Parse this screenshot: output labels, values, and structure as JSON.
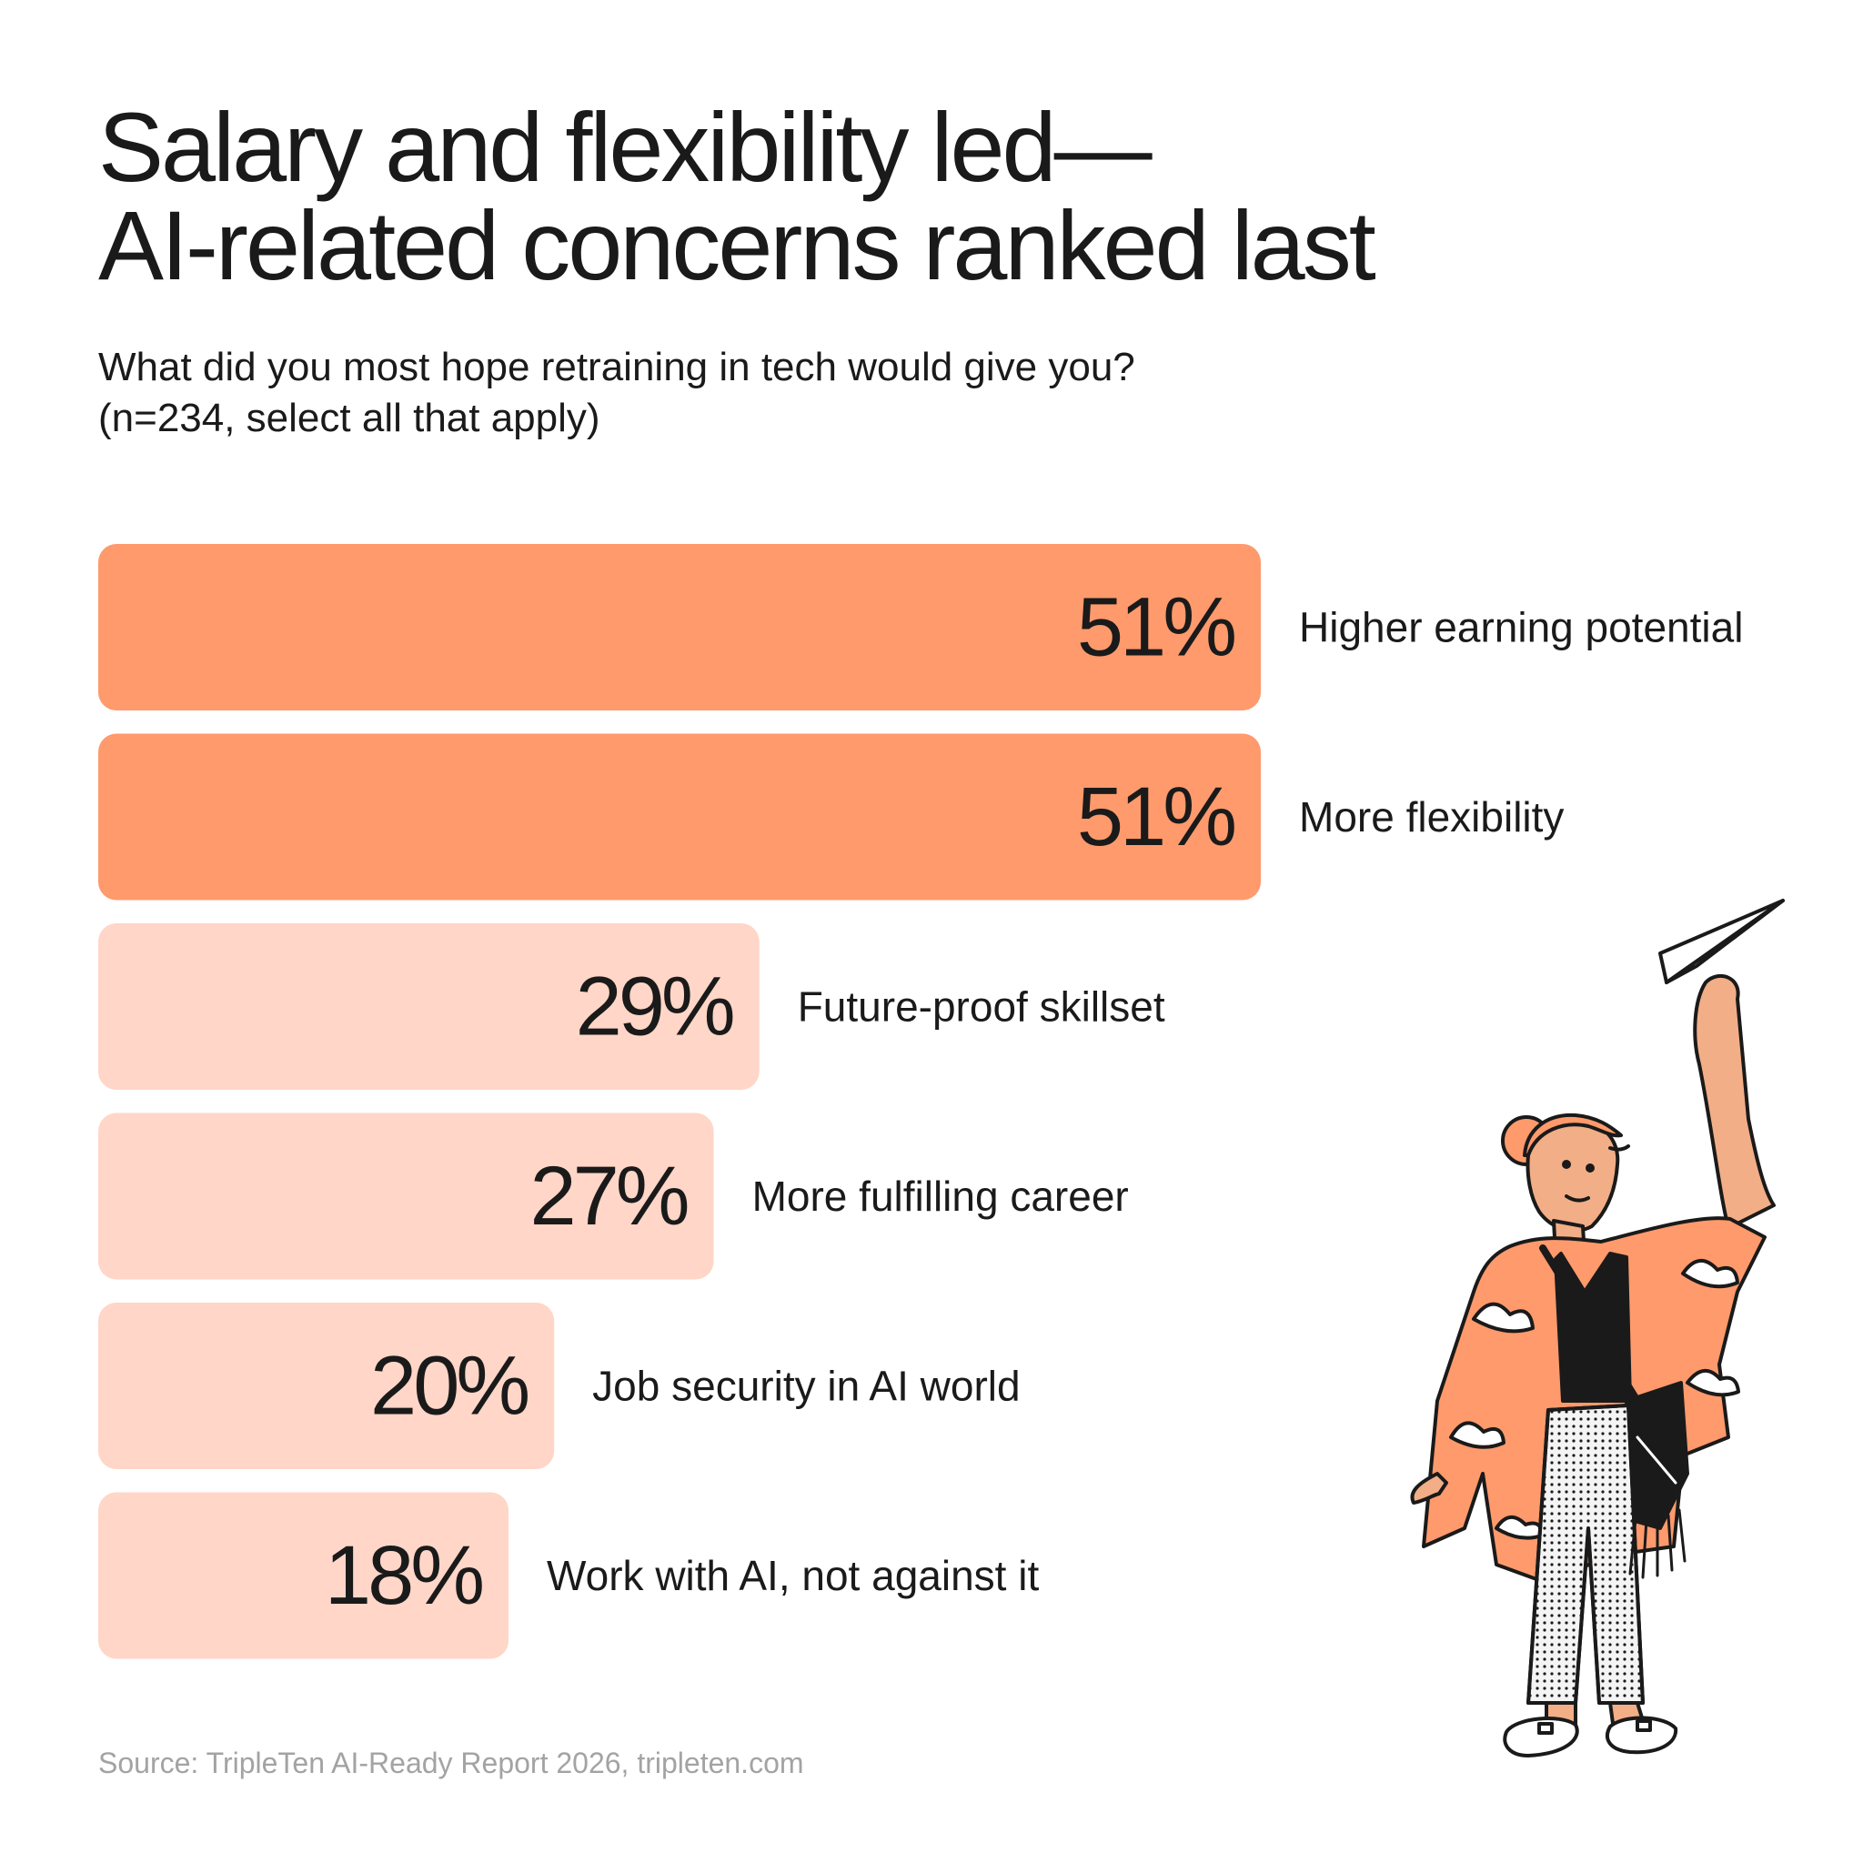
{
  "title_lines": [
    "Salary and flexibility led—",
    "AI-related concerns ranked last"
  ],
  "subtitle_lines": [
    "What did you most hope retraining in tech would give you?",
    "(n=234, select all that apply)"
  ],
  "source": "Source: TripleTen AI-Ready Report 2026, tripleten.com",
  "colors": {
    "highlight": "#FF9A6C",
    "muted": "#FFD6C7",
    "text": "#1a1a1a",
    "source": "#a3a3a3"
  },
  "chart_data": {
    "type": "bar",
    "orientation": "horizontal",
    "categories": [
      "Higher earning potential",
      "More flexibility",
      "Future-proof skillset",
      "More fulfilling career",
      "Job security in AI world",
      "Work with AI, not against it"
    ],
    "values": [
      51,
      51,
      29,
      27,
      20,
      18
    ],
    "value_labels": [
      "51%",
      "51%",
      "29%",
      "27%",
      "20%",
      "18%"
    ],
    "highlighted": [
      true,
      true,
      false,
      false,
      false,
      false
    ],
    "unit": "%",
    "xlim": [
      0,
      51
    ]
  }
}
